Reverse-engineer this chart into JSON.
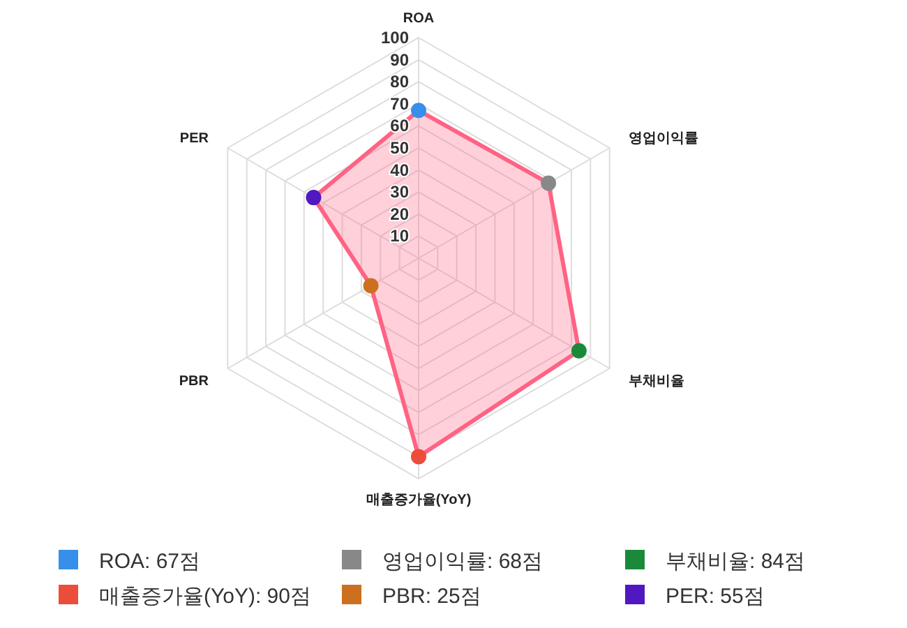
{
  "chart_data": {
    "type": "radar",
    "categories": [
      "ROA",
      "영업이익률",
      "부채비율",
      "매출증가율(YoY)",
      "PBR",
      "PER"
    ],
    "series": [
      {
        "color": "#ff6384",
        "values": [
          67,
          68,
          84,
          90,
          25,
          55
        ],
        "colors": [
          "#368fe9",
          "#888888",
          "#1a8a3a",
          "#eb4d3a",
          "#cc7020",
          "#5018c0"
        ]
      }
    ],
    "annotations": [
      "ROA: 67점",
      "영업이익률: 68점",
      "부채비율: 84점",
      "매출증가율(YoY): 90점",
      "PBR: 25점",
      "PER: 55점"
    ],
    "ylim": [
      0,
      100
    ],
    "yticks": [
      10,
      20,
      30,
      40,
      50,
      60,
      70,
      80,
      90,
      100
    ],
    "marker": "circle"
  }
}
